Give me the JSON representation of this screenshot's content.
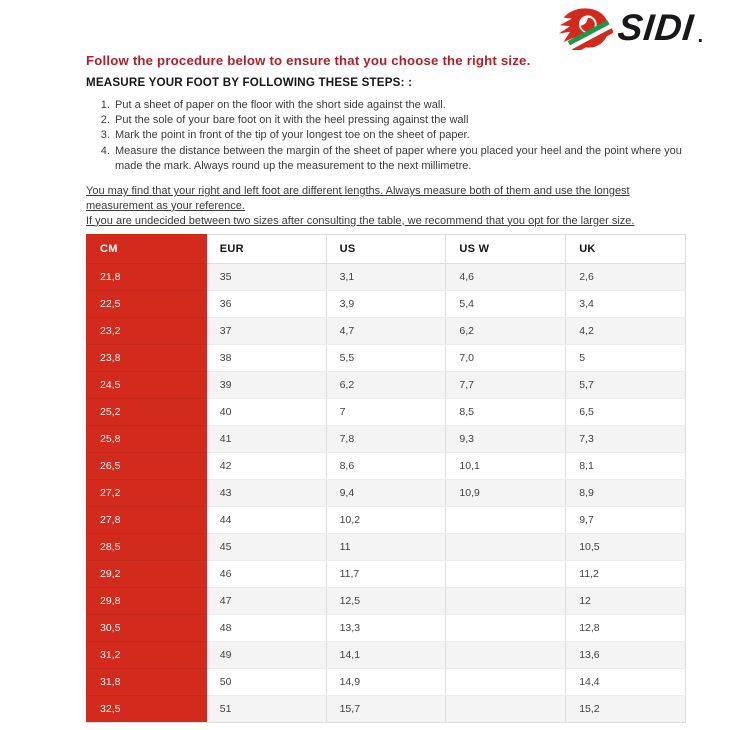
{
  "logo": {
    "icon": "sidi-flame-swirl",
    "brand": "SIDI",
    "mark": "."
  },
  "instructions": {
    "headline": "Follow the procedure below to ensure that you choose the right size.",
    "steps_title": "MEASURE YOUR FOOT BY FOLLOWING THESE STEPS: :",
    "steps": [
      "Put a sheet of paper on the floor with the short side against the wall.",
      "Put the sole of your bare foot on it with the heel pressing against the wall",
      "Mark the point in front of the tip of your longest toe on the sheet of paper.",
      "Measure the distance between the margin of the sheet of paper where you placed your heel and the point where you made the mark. Always round up the measurement to the next millimetre."
    ],
    "notes": [
      "You may find that your right and left foot are different lengths. Always measure both of them and use the longest measurement as your reference.",
      "If you are undecided between two sizes after consulting the table, we recommend that you opt for the larger size."
    ]
  },
  "size_table": {
    "columns": [
      "CM",
      "EUR",
      "US",
      "US W",
      "UK"
    ],
    "rows": [
      [
        "21,8",
        "35",
        "3,1",
        "4,6",
        "2,6"
      ],
      [
        "22,5",
        "36",
        "3,9",
        "5,4",
        "3,4"
      ],
      [
        "23,2",
        "37",
        "4,7",
        "6,2",
        "4,2"
      ],
      [
        "23,8",
        "38",
        "5,5",
        "7,0",
        "5"
      ],
      [
        "24,5",
        "39",
        "6,2",
        "7,7",
        "5,7"
      ],
      [
        "25,2",
        "40",
        "7",
        "8,5",
        "6,5"
      ],
      [
        "25,8",
        "41",
        "7,8",
        "9,3",
        "7,3"
      ],
      [
        "26,5",
        "42",
        "8,6",
        "10,1",
        "8,1"
      ],
      [
        "27,2",
        "43",
        "9,4",
        "10,9",
        "8,9"
      ],
      [
        "27,8",
        "44",
        "10,2",
        "",
        "9,7"
      ],
      [
        "28,5",
        "45",
        "11",
        "",
        "10,5"
      ],
      [
        "29,2",
        "46",
        "11,7",
        "",
        "11,2"
      ],
      [
        "29,8",
        "47",
        "12,5",
        "",
        "12"
      ],
      [
        "30,5",
        "48",
        "13,3",
        "",
        "12,8"
      ],
      [
        "31,2",
        "49",
        "14,1",
        "",
        "13,6"
      ],
      [
        "31,8",
        "50",
        "14,9",
        "",
        "14,4"
      ],
      [
        "32,5",
        "51",
        "15,7",
        "",
        "15,2"
      ]
    ]
  },
  "colors": {
    "table_red": "#d32a1e",
    "headline_red": "#b11f29",
    "row_alt_bg": "#f4f4f4",
    "border": "#dcdcdc",
    "flag_green": "#1a9a48"
  }
}
